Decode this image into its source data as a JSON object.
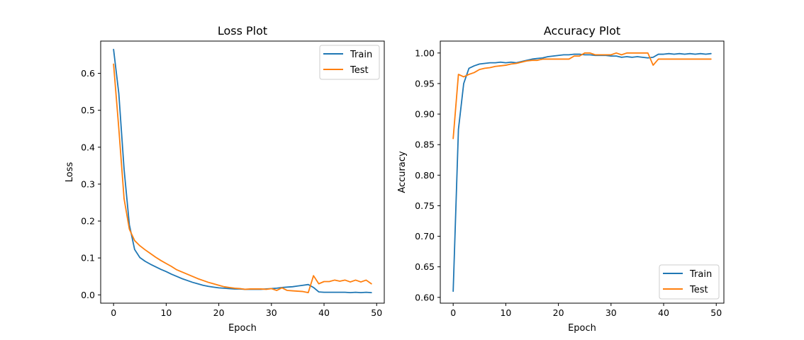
{
  "chart_data": [
    {
      "type": "line",
      "title": "Loss Plot",
      "xlabel": "Epoch",
      "ylabel": "Loss",
      "xlim": [
        -2.45,
        51.45
      ],
      "ylim": [
        -0.0225,
        0.6875
      ],
      "xticks": [
        0,
        10,
        20,
        30,
        40,
        50
      ],
      "yticks": [
        0.0,
        0.1,
        0.2,
        0.3,
        0.4,
        0.5,
        0.6
      ],
      "ytick_labels": [
        "0.0",
        "0.1",
        "0.2",
        "0.3",
        "0.4",
        "0.5",
        "0.6"
      ],
      "legend_position": "top-right",
      "grid": false,
      "series": [
        {
          "name": "Train",
          "color": "#1f77b4",
          "x": [
            0,
            1,
            2,
            3,
            4,
            5,
            6,
            7,
            8,
            9,
            10,
            11,
            12,
            13,
            14,
            15,
            16,
            17,
            18,
            19,
            20,
            21,
            22,
            23,
            24,
            25,
            26,
            27,
            28,
            29,
            30,
            31,
            32,
            33,
            34,
            35,
            36,
            37,
            38,
            39,
            40,
            41,
            42,
            43,
            44,
            45,
            46,
            47,
            48,
            49
          ],
          "values": [
            0.665,
            0.545,
            0.34,
            0.19,
            0.123,
            0.101,
            0.091,
            0.083,
            0.076,
            0.069,
            0.063,
            0.056,
            0.05,
            0.044,
            0.039,
            0.034,
            0.03,
            0.026,
            0.023,
            0.021,
            0.019,
            0.018,
            0.017,
            0.016,
            0.016,
            0.015,
            0.015,
            0.015,
            0.015,
            0.016,
            0.017,
            0.018,
            0.02,
            0.021,
            0.022,
            0.024,
            0.026,
            0.028,
            0.02,
            0.008,
            0.007,
            0.007,
            0.007,
            0.007,
            0.007,
            0.006,
            0.007,
            0.006,
            0.007,
            0.006
          ]
        },
        {
          "name": "Test",
          "color": "#ff7f0e",
          "x": [
            0,
            1,
            2,
            3,
            4,
            5,
            6,
            7,
            8,
            9,
            10,
            11,
            12,
            13,
            14,
            15,
            16,
            17,
            18,
            19,
            20,
            21,
            22,
            23,
            24,
            25,
            26,
            27,
            28,
            29,
            30,
            31,
            32,
            33,
            34,
            35,
            36,
            37,
            38,
            39,
            40,
            41,
            42,
            43,
            44,
            45,
            46,
            47,
            48,
            49
          ],
          "values": [
            0.625,
            0.45,
            0.26,
            0.178,
            0.147,
            0.133,
            0.122,
            0.112,
            0.102,
            0.093,
            0.085,
            0.077,
            0.068,
            0.062,
            0.056,
            0.05,
            0.044,
            0.039,
            0.034,
            0.03,
            0.026,
            0.022,
            0.02,
            0.018,
            0.017,
            0.015,
            0.016,
            0.016,
            0.016,
            0.015,
            0.017,
            0.012,
            0.019,
            0.012,
            0.011,
            0.01,
            0.009,
            0.006,
            0.052,
            0.03,
            0.036,
            0.036,
            0.04,
            0.037,
            0.04,
            0.035,
            0.04,
            0.035,
            0.04,
            0.03
          ]
        }
      ]
    },
    {
      "type": "line",
      "title": "Accuracy Plot",
      "xlabel": "Epoch",
      "ylabel": "Accuracy",
      "xlim": [
        -2.45,
        51.45
      ],
      "ylim": [
        0.5905,
        1.0195
      ],
      "xticks": [
        0,
        10,
        20,
        30,
        40,
        50
      ],
      "yticks": [
        0.6,
        0.65,
        0.7,
        0.75,
        0.8,
        0.85,
        0.9,
        0.95,
        1.0
      ],
      "ytick_labels": [
        "0.60",
        "0.65",
        "0.70",
        "0.75",
        "0.80",
        "0.85",
        "0.90",
        "0.95",
        "1.00"
      ],
      "legend_position": "bottom-right",
      "grid": false,
      "series": [
        {
          "name": "Train",
          "color": "#1f77b4",
          "x": [
            0,
            1,
            2,
            3,
            4,
            5,
            6,
            7,
            8,
            9,
            10,
            11,
            12,
            13,
            14,
            15,
            16,
            17,
            18,
            19,
            20,
            21,
            22,
            23,
            24,
            25,
            26,
            27,
            28,
            29,
            30,
            31,
            32,
            33,
            34,
            35,
            36,
            37,
            38,
            39,
            40,
            41,
            42,
            43,
            44,
            45,
            46,
            47,
            48,
            49
          ],
          "values": [
            0.61,
            0.875,
            0.95,
            0.975,
            0.979,
            0.982,
            0.983,
            0.984,
            0.984,
            0.985,
            0.984,
            0.985,
            0.984,
            0.986,
            0.988,
            0.99,
            0.991,
            0.992,
            0.994,
            0.995,
            0.996,
            0.997,
            0.997,
            0.998,
            0.998,
            0.997,
            0.997,
            0.996,
            0.996,
            0.996,
            0.995,
            0.995,
            0.993,
            0.994,
            0.993,
            0.994,
            0.993,
            0.992,
            0.993,
            0.998,
            0.998,
            0.999,
            0.998,
            0.999,
            0.998,
            0.999,
            0.998,
            0.999,
            0.998,
            0.999
          ]
        },
        {
          "name": "Test",
          "color": "#ff7f0e",
          "x": [
            0,
            1,
            2,
            3,
            4,
            5,
            6,
            7,
            8,
            9,
            10,
            11,
            12,
            13,
            14,
            15,
            16,
            17,
            18,
            19,
            20,
            21,
            22,
            23,
            24,
            25,
            26,
            27,
            28,
            29,
            30,
            31,
            32,
            33,
            34,
            35,
            36,
            37,
            38,
            39,
            40,
            41,
            42,
            43,
            44,
            45,
            46,
            47,
            48,
            49
          ],
          "values": [
            0.86,
            0.965,
            0.961,
            0.965,
            0.968,
            0.973,
            0.975,
            0.976,
            0.978,
            0.979,
            0.98,
            0.982,
            0.983,
            0.985,
            0.987,
            0.988,
            0.988,
            0.99,
            0.99,
            0.99,
            0.99,
            0.99,
            0.99,
            0.995,
            0.995,
            1.0,
            1.0,
            0.997,
            0.997,
            0.997,
            0.997,
            1.0,
            0.997,
            1.0,
            1.0,
            1.0,
            1.0,
            1.0,
            0.98,
            0.99,
            0.99,
            0.99,
            0.99,
            0.99,
            0.99,
            0.99,
            0.99,
            0.99,
            0.99,
            0.99
          ]
        }
      ]
    }
  ]
}
